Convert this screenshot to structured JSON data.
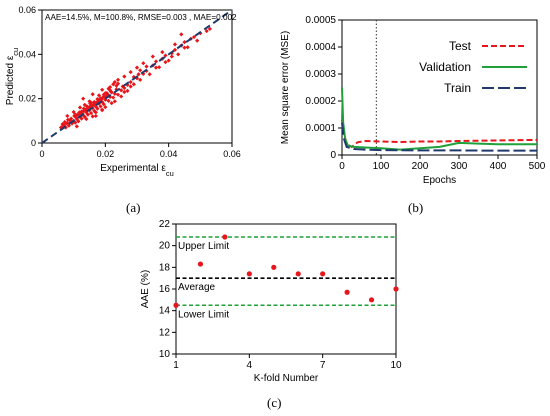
{
  "panels": {
    "a": "(a)",
    "b": "(b)",
    "c": "(c)"
  },
  "chart_data": [
    {
      "type": "scatter",
      "panel": "(a)",
      "xlabel": "Experimental ε_cu",
      "ylabel": "Predicted ε_cu",
      "xlim": [
        0,
        0.06
      ],
      "ylim": [
        0,
        0.06
      ],
      "xticks": [
        "0",
        "0.02",
        "0.04",
        "0.06"
      ],
      "yticks": [
        "0",
        "0.02",
        "0.04",
        "0.06"
      ],
      "annotation": "AAE=14.5%, M=100.8%, RMSE=0.003 , MAE=0.002",
      "colors": {
        "points": "#e8161b",
        "reference_line": "#1f3a6b"
      },
      "reference_line": {
        "style": "dashed",
        "from": [
          0,
          0
        ],
        "to": [
          0.06,
          0.06
        ]
      },
      "series": [
        {
          "values": [
            [
              0.006,
              0.007
            ],
            [
              0.0065,
              0.0085
            ],
            [
              0.007,
              0.008
            ],
            [
              0.0072,
              0.0095
            ],
            [
              0.0075,
              0.007
            ],
            [
              0.008,
              0.009
            ],
            [
              0.0082,
              0.0105
            ],
            [
              0.0085,
              0.0078
            ],
            [
              0.009,
              0.0095
            ],
            [
              0.0092,
              0.011
            ],
            [
              0.0095,
              0.0088
            ],
            [
              0.01,
              0.01
            ],
            [
              0.0102,
              0.0122
            ],
            [
              0.0105,
              0.0092
            ],
            [
              0.011,
              0.0108
            ],
            [
              0.0112,
              0.0128
            ],
            [
              0.0115,
              0.0098
            ],
            [
              0.012,
              0.0118
            ],
            [
              0.0122,
              0.0136
            ],
            [
              0.0125,
              0.011
            ],
            [
              0.013,
              0.0125
            ],
            [
              0.0132,
              0.0145
            ],
            [
              0.0135,
              0.0118
            ],
            [
              0.014,
              0.0138
            ],
            [
              0.0142,
              0.0155
            ],
            [
              0.0145,
              0.0128
            ],
            [
              0.015,
              0.0148
            ],
            [
              0.0152,
              0.0165
            ],
            [
              0.0155,
              0.0135
            ],
            [
              0.016,
              0.0158
            ],
            [
              0.0162,
              0.0172
            ],
            [
              0.0165,
              0.0145
            ],
            [
              0.017,
              0.0165
            ],
            [
              0.0172,
              0.0182
            ],
            [
              0.0175,
              0.0155
            ],
            [
              0.018,
              0.0178
            ],
            [
              0.0182,
              0.0192
            ],
            [
              0.0185,
              0.0165
            ],
            [
              0.019,
              0.0185
            ],
            [
              0.0192,
              0.0205
            ],
            [
              0.0195,
              0.0175
            ],
            [
              0.02,
              0.0195
            ],
            [
              0.0205,
              0.0212
            ],
            [
              0.021,
              0.019
            ],
            [
              0.0215,
              0.0208
            ],
            [
              0.022,
              0.0228
            ],
            [
              0.0225,
              0.0205
            ],
            [
              0.023,
              0.0222
            ],
            [
              0.0235,
              0.0242
            ],
            [
              0.024,
              0.0218
            ],
            [
              0.025,
              0.0238
            ],
            [
              0.0255,
              0.0255
            ],
            [
              0.026,
              0.023
            ],
            [
              0.027,
              0.0262
            ],
            [
              0.028,
              0.0275
            ],
            [
              0.029,
              0.0265
            ],
            [
              0.03,
              0.0292
            ],
            [
              0.0305,
              0.031
            ],
            [
              0.031,
              0.0285
            ],
            [
              0.032,
              0.0312
            ],
            [
              0.033,
              0.0325
            ],
            [
              0.034,
              0.031
            ],
            [
              0.035,
              0.035
            ],
            [
              0.036,
              0.0368
            ],
            [
              0.037,
              0.0342
            ],
            [
              0.038,
              0.038
            ],
            [
              0.039,
              0.0395
            ],
            [
              0.04,
              0.0372
            ],
            [
              0.041,
              0.0405
            ],
            [
              0.042,
              0.042
            ],
            [
              0.043,
              0.04
            ],
            [
              0.044,
              0.044
            ],
            [
              0.045,
              0.0455
            ],
            [
              0.046,
              0.0432
            ],
            [
              0.047,
              0.047
            ],
            [
              0.048,
              0.0478
            ],
            [
              0.049,
              0.0462
            ],
            [
              0.05,
              0.0495
            ],
            [
              0.052,
              0.0505
            ],
            [
              0.053,
              0.0515
            ],
            [
              0.012,
              0.016
            ],
            [
              0.015,
              0.0188
            ],
            [
              0.018,
              0.0215
            ],
            [
              0.021,
              0.0245
            ],
            [
              0.024,
              0.0268
            ],
            [
              0.011,
              0.0075
            ],
            [
              0.014,
              0.0108
            ],
            [
              0.017,
              0.0138
            ],
            [
              0.02,
              0.0162
            ],
            [
              0.023,
              0.0188
            ],
            [
              0.013,
              0.02
            ],
            [
              0.016,
              0.022
            ],
            [
              0.019,
              0.024
            ],
            [
              0.026,
              0.03
            ],
            [
              0.028,
              0.032
            ],
            [
              0.016,
              0.012
            ],
            [
              0.019,
              0.015
            ],
            [
              0.022,
              0.018
            ],
            [
              0.025,
              0.021
            ],
            [
              0.027,
              0.0235
            ],
            [
              0.03,
              0.034
            ],
            [
              0.032,
              0.036
            ],
            [
              0.035,
              0.039
            ],
            [
              0.038,
              0.041
            ],
            [
              0.044,
              0.049
            ],
            [
              0.008,
              0.0122
            ],
            [
              0.01,
              0.014
            ],
            [
              0.0135,
              0.0172
            ],
            [
              0.017,
              0.0122
            ],
            [
              0.019,
              0.0148
            ],
            [
              0.02,
              0.0225
            ],
            [
              0.0215,
              0.0252
            ],
            [
              0.0225,
              0.0265
            ],
            [
              0.023,
              0.0275
            ],
            [
              0.024,
              0.0285
            ],
            [
              0.026,
              0.0248
            ],
            [
              0.028,
              0.0255
            ],
            [
              0.029,
              0.0298
            ],
            [
              0.031,
              0.0328
            ],
            [
              0.033,
              0.0345
            ],
            [
              0.036,
              0.034
            ],
            [
              0.039,
              0.0365
            ],
            [
              0.041,
              0.039
            ],
            [
              0.042,
              0.0445
            ],
            [
              0.045,
              0.043
            ],
            [
              0.0065,
              0.0075
            ],
            [
              0.0078,
              0.0088
            ],
            [
              0.009,
              0.0102
            ],
            [
              0.0108,
              0.0115
            ],
            [
              0.0118,
              0.0125
            ],
            [
              0.0128,
              0.0132
            ],
            [
              0.0138,
              0.0148
            ],
            [
              0.0148,
              0.0158
            ],
            [
              0.0158,
              0.0168
            ],
            [
              0.0168,
              0.0175
            ],
            [
              0.0178,
              0.0188
            ],
            [
              0.0188,
              0.0198
            ],
            [
              0.0198,
              0.0208
            ],
            [
              0.0208,
              0.0218
            ],
            [
              0.0218,
              0.0232
            ],
            [
              0.0125,
              0.0142
            ],
            [
              0.0145,
              0.0162
            ],
            [
              0.0165,
              0.0185
            ],
            [
              0.0185,
              0.0202
            ],
            [
              0.0205,
              0.0225
            ],
            [
              0.0155,
              0.0182
            ],
            [
              0.0175,
              0.0198
            ],
            [
              0.0195,
              0.0218
            ],
            [
              0.0215,
              0.0238
            ],
            [
              0.0235,
              0.0258
            ],
            [
              0.0105,
              0.0128
            ],
            [
              0.0118,
              0.0138
            ],
            [
              0.0132,
              0.0155
            ],
            [
              0.0142,
              0.0165
            ],
            [
              0.0152,
              0.0178
            ]
          ]
        }
      ]
    },
    {
      "type": "line",
      "panel": "(b)",
      "xlabel": "Epochs",
      "ylabel": "Mean square error (MSE)",
      "xlim": [
        0,
        500
      ],
      "ylim": [
        0,
        0.0005
      ],
      "xticks": [
        "0",
        "100",
        "200",
        "300",
        "400",
        "500"
      ],
      "yticks": [
        "0",
        "0.0001",
        "0.0002",
        "0.0003",
        "0.0004",
        "0.0005"
      ],
      "vertical_marker": {
        "x": 88,
        "style": "dotted"
      },
      "legend_position": "top-right",
      "series": [
        {
          "name": "Test",
          "color": "#e8161b",
          "style": "dashed",
          "values": [
            [
              0,
              0.00013
            ],
            [
              5,
              8e-05
            ],
            [
              12,
              4e-05
            ],
            [
              25,
              3e-05
            ],
            [
              40,
              4.7e-05
            ],
            [
              60,
              5.2e-05
            ],
            [
              100,
              5e-05
            ],
            [
              150,
              4.8e-05
            ],
            [
              200,
              5e-05
            ],
            [
              250,
              5e-05
            ],
            [
              300,
              5.2e-05
            ],
            [
              350,
              5.3e-05
            ],
            [
              400,
              5.4e-05
            ],
            [
              450,
              5.5e-05
            ],
            [
              500,
              5.6e-05
            ]
          ]
        },
        {
          "name": "Validation",
          "color": "#1fa03a",
          "style": "solid",
          "values": [
            [
              0,
              0.00025
            ],
            [
              3,
              0.00012
            ],
            [
              8,
              6e-05
            ],
            [
              15,
              3.5e-05
            ],
            [
              30,
              3e-05
            ],
            [
              60,
              2.8e-05
            ],
            [
              100,
              2.5e-05
            ],
            [
              150,
              2e-05
            ],
            [
              200,
              2.5e-05
            ],
            [
              250,
              3e-05
            ],
            [
              300,
              4.5e-05
            ],
            [
              350,
              4.2e-05
            ],
            [
              400,
              4e-05
            ],
            [
              450,
              4e-05
            ],
            [
              500,
              4e-05
            ]
          ]
        },
        {
          "name": "Train",
          "color": "#1f3a6b",
          "style": "longdash",
          "values": [
            [
              0,
              0.00012
            ],
            [
              5,
              6e-05
            ],
            [
              12,
              3e-05
            ],
            [
              30,
              2.2e-05
            ],
            [
              60,
              2e-05
            ],
            [
              100,
              1.8e-05
            ],
            [
              200,
              1.7e-05
            ],
            [
              300,
              1.7e-05
            ],
            [
              400,
              1.6e-05
            ],
            [
              500,
              1.6e-05
            ]
          ]
        }
      ]
    },
    {
      "type": "scatter",
      "panel": "(c)",
      "xlabel": "K-fold Number",
      "ylabel": "AAE (%)",
      "xlim": [
        1,
        10
      ],
      "ylim": [
        10,
        22
      ],
      "xticks": [
        "1",
        "4",
        "7",
        "10"
      ],
      "yticks": [
        "10",
        "12",
        "14",
        "16",
        "18",
        "20",
        "22"
      ],
      "colors": {
        "points": "#e8161b",
        "limits": "#1fa03a",
        "average": "#000000"
      },
      "series": [
        {
          "values": [
            [
              1,
              14.5
            ],
            [
              2,
              18.3
            ],
            [
              3,
              20.8
            ],
            [
              4,
              17.4
            ],
            [
              5,
              18.0
            ],
            [
              6,
              17.4
            ],
            [
              7,
              17.4
            ],
            [
              8,
              15.7
            ],
            [
              9,
              15.0
            ],
            [
              10,
              16.0
            ]
          ]
        }
      ],
      "reference_lines": [
        {
          "label": "Upper Limit",
          "y": 20.8,
          "style": "dashed"
        },
        {
          "label": "Average",
          "y": 17.0,
          "style": "dashed"
        },
        {
          "label": "Lower Limit",
          "y": 14.5,
          "style": "dashed"
        }
      ]
    }
  ]
}
